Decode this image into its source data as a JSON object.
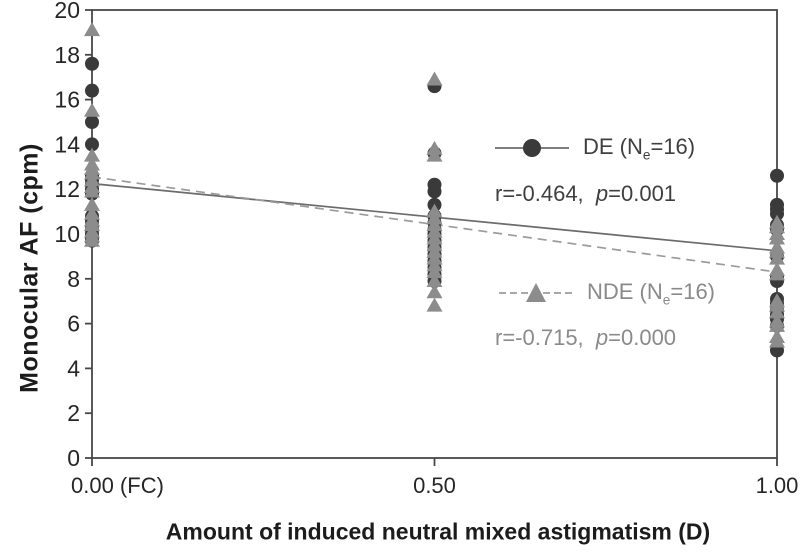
{
  "chart_data": {
    "type": "scatter",
    "title": "",
    "xlabel": "Amount of induced neutral mixed astigmatism (D)",
    "ylabel": "Monocular AF (cpm)",
    "xlim": [
      0,
      1
    ],
    "ylim": [
      0,
      20
    ],
    "grid": false,
    "frame": true,
    "axis_color": "#474747",
    "tick_label_color": "#262626",
    "y_ticks": [
      0,
      2,
      4,
      6,
      8,
      10,
      12,
      14,
      16,
      18,
      20
    ],
    "x_ticks": [
      {
        "value": 0.0,
        "label": "0.00 (FC)"
      },
      {
        "value": 0.5,
        "label": "0.50"
      },
      {
        "value": 1.0,
        "label": "1.00"
      }
    ],
    "series": [
      {
        "name": "DE",
        "marker": "circle",
        "marker_color": "#3a3a3a",
        "line_style": "solid",
        "line_color": "#6b6b6b",
        "text_color": "#3f3f3f",
        "legend": {
          "prefix": "DE (N",
          "sub": "e",
          "suffix": "=16)"
        },
        "stats": {
          "r_text": "r=-0.464,  ",
          "p_symbol": "p",
          "p_text": "=0.001"
        },
        "regression": {
          "x": [
            0,
            1
          ],
          "y": [
            12.25,
            9.25
          ]
        },
        "points": [
          [
            0,
            17.6
          ],
          [
            0,
            16.4
          ],
          [
            0,
            15.0
          ],
          [
            0,
            14.0
          ],
          [
            0,
            12.6
          ],
          [
            0,
            12.4
          ],
          [
            0,
            12.2
          ],
          [
            0,
            12.0
          ],
          [
            0,
            11.8
          ],
          [
            0,
            10.8
          ],
          [
            0,
            10.6
          ],
          [
            0,
            10.4
          ],
          [
            0,
            10.2
          ],
          [
            0,
            10.0
          ],
          [
            0,
            9.8
          ],
          [
            0,
            9.7
          ],
          [
            0.5,
            16.6
          ],
          [
            0.5,
            13.6
          ],
          [
            0.5,
            12.2
          ],
          [
            0.5,
            11.9
          ],
          [
            0.5,
            11.3
          ],
          [
            0.5,
            10.8
          ],
          [
            0.5,
            10.5
          ],
          [
            0.5,
            10.2
          ],
          [
            0.5,
            10.0
          ],
          [
            0.5,
            9.7
          ],
          [
            0.5,
            9.4
          ],
          [
            0.5,
            9.1
          ],
          [
            0.5,
            8.8
          ],
          [
            0.5,
            8.5
          ],
          [
            0.5,
            8.2
          ],
          [
            0.5,
            7.9
          ],
          [
            1,
            12.6
          ],
          [
            1,
            11.3
          ],
          [
            1,
            11.1
          ],
          [
            1,
            10.9
          ],
          [
            1,
            10.4
          ],
          [
            1,
            10.2
          ],
          [
            1,
            9.0
          ],
          [
            1,
            8.1
          ],
          [
            1,
            7.9
          ],
          [
            1,
            7.1
          ],
          [
            1,
            6.9
          ],
          [
            1,
            6.6
          ],
          [
            1,
            6.4
          ],
          [
            1,
            6.2
          ],
          [
            1,
            5.9
          ],
          [
            1,
            4.8
          ]
        ]
      },
      {
        "name": "NDE",
        "marker": "triangle",
        "marker_color": "#8c8c8c",
        "line_style": "dashed",
        "line_color": "#9b9b9b",
        "text_color": "#8a8a8a",
        "legend": {
          "prefix": "NDE (N",
          "sub": "e",
          "suffix": "=16)"
        },
        "stats": {
          "r_text": "r=-0.715,  ",
          "p_symbol": "p",
          "p_text": "=0.000"
        },
        "regression": {
          "x": [
            0,
            1
          ],
          "y": [
            12.55,
            8.3
          ]
        },
        "points": [
          [
            0,
            19.1
          ],
          [
            0,
            15.5
          ],
          [
            0,
            13.5
          ],
          [
            0,
            13.1
          ],
          [
            0,
            12.9
          ],
          [
            0,
            12.7
          ],
          [
            0,
            12.4
          ],
          [
            0,
            12.1
          ],
          [
            0,
            11.9
          ],
          [
            0,
            11.3
          ],
          [
            0,
            10.9
          ],
          [
            0,
            10.6
          ],
          [
            0,
            10.4
          ],
          [
            0,
            10.1
          ],
          [
            0,
            9.9
          ],
          [
            0,
            9.7
          ],
          [
            0.5,
            16.9
          ],
          [
            0.5,
            13.8
          ],
          [
            0.5,
            13.5
          ],
          [
            0.5,
            11.0
          ],
          [
            0.5,
            10.7
          ],
          [
            0.5,
            10.4
          ],
          [
            0.5,
            10.1
          ],
          [
            0.5,
            9.8
          ],
          [
            0.5,
            9.5
          ],
          [
            0.5,
            9.2
          ],
          [
            0.5,
            8.9
          ],
          [
            0.5,
            8.6
          ],
          [
            0.5,
            8.3
          ],
          [
            0.5,
            7.9
          ],
          [
            0.5,
            7.4
          ],
          [
            0.5,
            6.8
          ],
          [
            1,
            10.5
          ],
          [
            1,
            10.3
          ],
          [
            1,
            10.0
          ],
          [
            1,
            9.8
          ],
          [
            1,
            9.4
          ],
          [
            1,
            9.2
          ],
          [
            1,
            8.9
          ],
          [
            1,
            8.4
          ],
          [
            1,
            8.2
          ],
          [
            1,
            7.0
          ],
          [
            1,
            6.8
          ],
          [
            1,
            6.5
          ],
          [
            1,
            6.1
          ],
          [
            1,
            5.9
          ],
          [
            1,
            5.4
          ],
          [
            1,
            5.2
          ]
        ]
      }
    ]
  }
}
